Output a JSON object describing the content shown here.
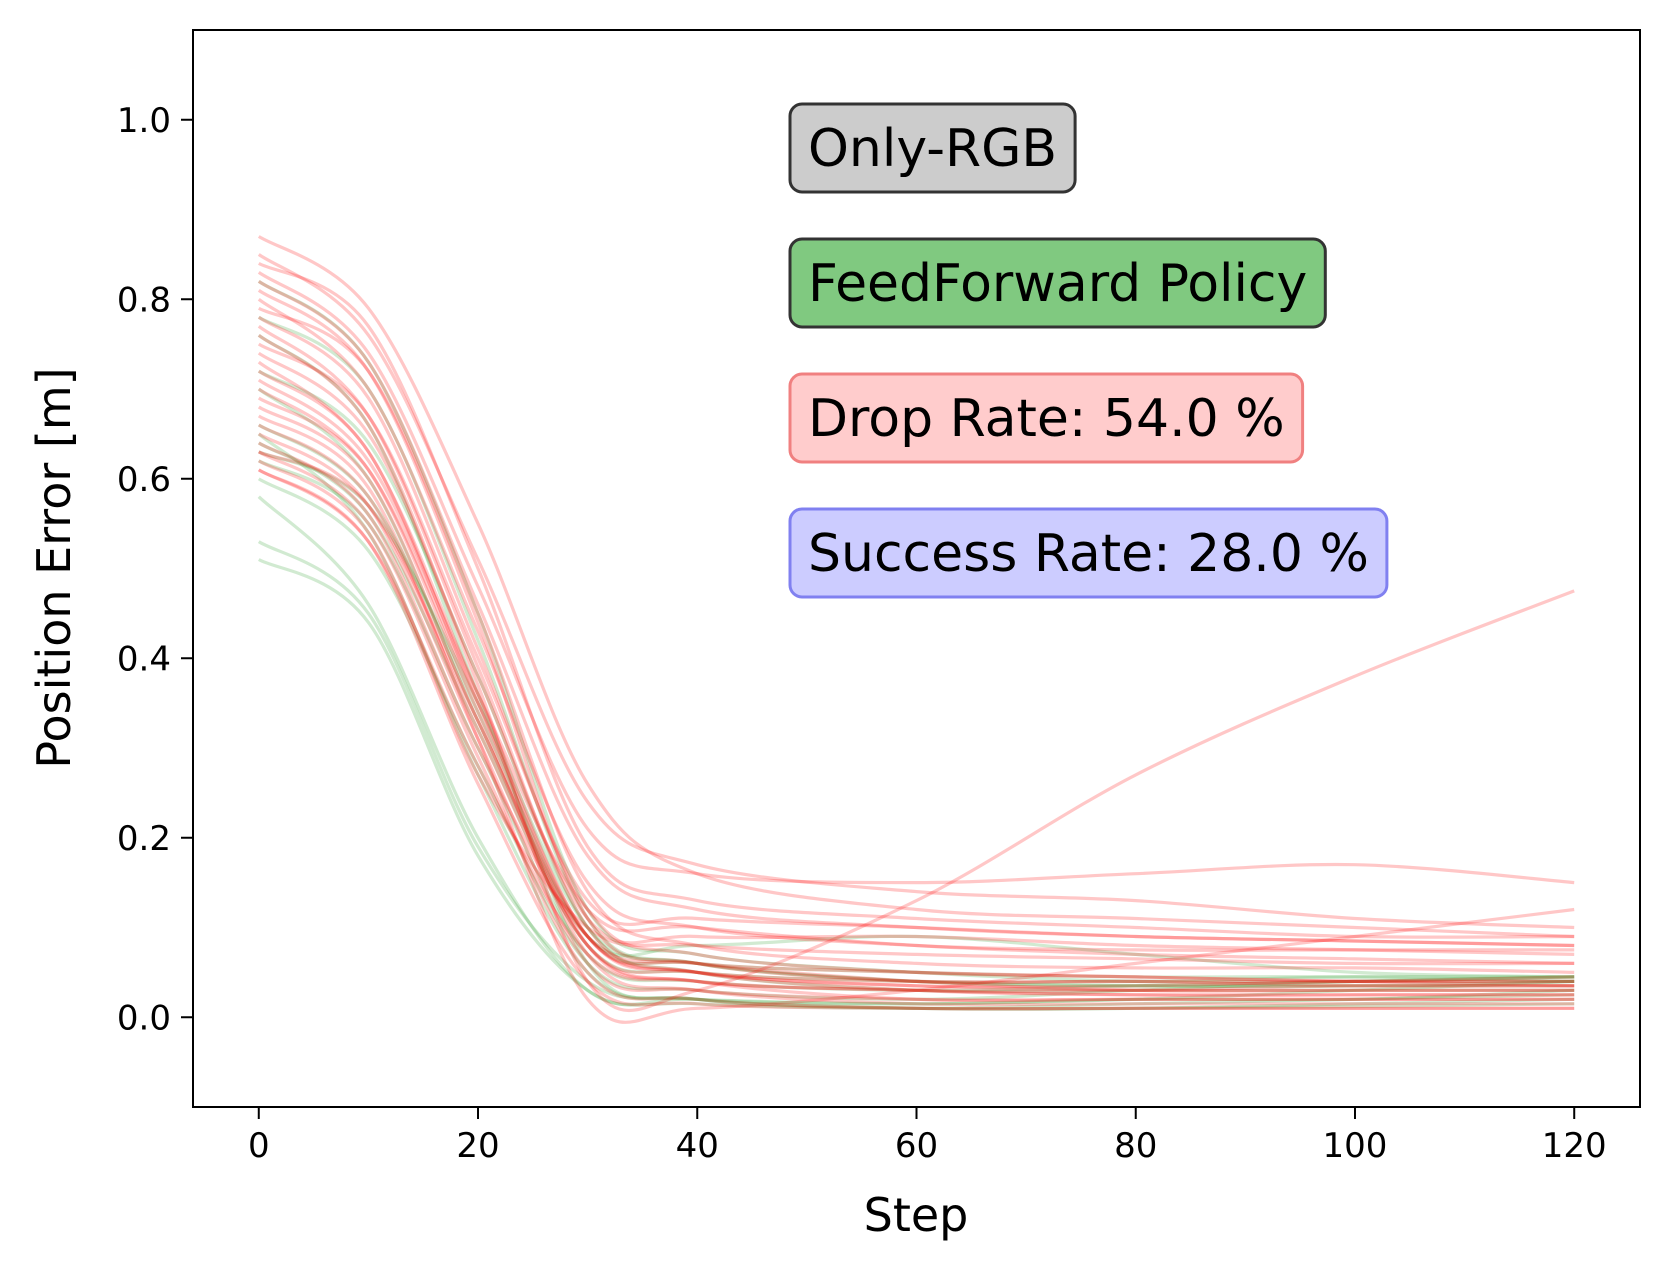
{
  "chart_data": {
    "type": "line",
    "xlabel": "Step",
    "ylabel": "Position Error [m]",
    "xlim": [
      -6,
      126
    ],
    "ylim": [
      -0.1,
      1.1
    ],
    "xticks": [
      0,
      20,
      40,
      60,
      80,
      100,
      120
    ],
    "yticks": [
      0.0,
      0.2,
      0.4,
      0.6,
      0.8,
      1.0
    ],
    "xtick_labels": [
      "0",
      "20",
      "40",
      "60",
      "80",
      "100",
      "120"
    ],
    "ytick_labels": [
      "0.0",
      "0.2",
      "0.4",
      "0.6",
      "0.8",
      "1.0"
    ],
    "grid": false,
    "annotations": [
      {
        "text": "Only-RGB",
        "face": "#cccccc",
        "edge": "#333333"
      },
      {
        "text": "FeedForward Policy",
        "face": "#80c980",
        "edge": "#333333"
      },
      {
        "text": "Drop Rate: 54.0 %",
        "face": "#ffcccc",
        "edge": "#f08080"
      },
      {
        "text": "Success Rate: 28.0 %",
        "face": "#ccccff",
        "edge": "#8080f0"
      }
    ],
    "series_colors": {
      "success": "#2ca02c",
      "drop": "#ff0000"
    },
    "series": [
      {
        "name": "success",
        "color": "#2ca02c",
        "x": [
          0,
          10,
          20,
          30,
          40,
          60,
          80,
          100,
          120
        ],
        "y": [
          0.58,
          0.46,
          0.2,
          0.03,
          0.02,
          0.015,
          0.02,
          0.03,
          0.04
        ]
      },
      {
        "name": "success",
        "color": "#2ca02c",
        "x": [
          0,
          10,
          20,
          30,
          40,
          60,
          80,
          100,
          120
        ],
        "y": [
          0.51,
          0.44,
          0.18,
          0.03,
          0.015,
          0.01,
          0.015,
          0.02,
          0.025
        ]
      },
      {
        "name": "success",
        "color": "#2ca02c",
        "x": [
          0,
          10,
          20,
          30,
          40,
          60,
          80,
          100,
          120
        ],
        "y": [
          0.53,
          0.45,
          0.19,
          0.04,
          0.02,
          0.015,
          0.02,
          0.02,
          0.03
        ]
      },
      {
        "name": "success",
        "color": "#2ca02c",
        "x": [
          0,
          10,
          20,
          30,
          40,
          60,
          80,
          100,
          120
        ],
        "y": [
          0.6,
          0.52,
          0.28,
          0.06,
          0.03,
          0.02,
          0.03,
          0.04,
          0.045
        ]
      },
      {
        "name": "success",
        "color": "#2ca02c",
        "x": [
          0,
          10,
          20,
          30,
          40,
          60,
          80,
          100,
          120
        ],
        "y": [
          0.62,
          0.55,
          0.3,
          0.07,
          0.04,
          0.03,
          0.035,
          0.04,
          0.045
        ]
      },
      {
        "name": "success",
        "color": "#2ca02c",
        "x": [
          0,
          10,
          20,
          30,
          40,
          60,
          80,
          100,
          120
        ],
        "y": [
          0.64,
          0.56,
          0.32,
          0.08,
          0.05,
          0.04,
          0.04,
          0.045,
          0.045
        ]
      },
      {
        "name": "success",
        "color": "#2ca02c",
        "x": [
          0,
          10,
          20,
          30,
          40,
          60,
          80,
          100,
          120
        ],
        "y": [
          0.66,
          0.58,
          0.34,
          0.09,
          0.06,
          0.05,
          0.045,
          0.045,
          0.04
        ]
      },
      {
        "name": "success",
        "color": "#2ca02c",
        "x": [
          0,
          10,
          20,
          30,
          40,
          60,
          80,
          100,
          120
        ],
        "y": [
          0.72,
          0.64,
          0.38,
          0.1,
          0.05,
          0.03,
          0.03,
          0.03,
          0.03
        ]
      },
      {
        "name": "success",
        "color": "#2ca02c",
        "x": [
          0,
          10,
          20,
          30,
          40,
          60,
          80,
          100,
          120
        ],
        "y": [
          0.78,
          0.7,
          0.42,
          0.11,
          0.06,
          0.04,
          0.035,
          0.035,
          0.035
        ]
      },
      {
        "name": "success",
        "color": "#2ca02c",
        "x": [
          0,
          10,
          20,
          30,
          40,
          60,
          80,
          100,
          120
        ],
        "y": [
          0.82,
          0.73,
          0.45,
          0.12,
          0.07,
          0.05,
          0.04,
          0.04,
          0.04
        ]
      },
      {
        "name": "success",
        "color": "#2ca02c",
        "x": [
          0,
          10,
          20,
          30,
          40,
          60,
          80,
          100,
          120
        ],
        "y": [
          0.7,
          0.6,
          0.33,
          0.09,
          0.08,
          0.09,
          0.07,
          0.05,
          0.045
        ]
      },
      {
        "name": "success",
        "color": "#2ca02c",
        "x": [
          0,
          10,
          20,
          30,
          40,
          60,
          80,
          100,
          120
        ],
        "y": [
          0.65,
          0.54,
          0.27,
          0.05,
          0.02,
          0.01,
          0.01,
          0.015,
          0.02
        ]
      },
      {
        "name": "success",
        "color": "#2ca02c",
        "x": [
          0,
          10,
          20,
          30,
          40,
          60,
          80,
          100,
          120
        ],
        "y": [
          0.63,
          0.57,
          0.35,
          0.1,
          0.06,
          0.04,
          0.035,
          0.035,
          0.04
        ]
      },
      {
        "name": "success",
        "color": "#2ca02c",
        "x": [
          0,
          10,
          20,
          30,
          40,
          60,
          80,
          100,
          120
        ],
        "y": [
          0.76,
          0.66,
          0.36,
          0.06,
          0.02,
          0.01,
          0.01,
          0.012,
          0.015
        ]
      },
      {
        "name": "drop",
        "color": "#ff0000",
        "x": [
          0,
          10,
          20,
          30,
          40,
          60,
          80,
          100,
          120
        ],
        "y": [
          0.87,
          0.79,
          0.55,
          0.26,
          0.16,
          0.12,
          0.11,
          0.1,
          0.09
        ]
      },
      {
        "name": "drop",
        "color": "#ff0000",
        "x": [
          0,
          10,
          20,
          30,
          40,
          60,
          80,
          100,
          120
        ],
        "y": [
          0.85,
          0.76,
          0.51,
          0.24,
          0.17,
          0.14,
          0.13,
          0.11,
          0.1
        ]
      },
      {
        "name": "drop",
        "color": "#ff0000",
        "x": [
          0,
          10,
          20,
          30,
          40,
          60,
          80,
          100,
          120
        ],
        "y": [
          0.83,
          0.74,
          0.48,
          0.21,
          0.16,
          0.15,
          0.16,
          0.17,
          0.15
        ]
      },
      {
        "name": "drop",
        "color": "#ff0000",
        "x": [
          0,
          10,
          20,
          30,
          40,
          60,
          80,
          100,
          120
        ],
        "y": [
          0.82,
          0.73,
          0.46,
          0.18,
          0.12,
          0.1,
          0.09,
          0.085,
          0.08
        ]
      },
      {
        "name": "drop",
        "color": "#ff0000",
        "x": [
          0,
          10,
          20,
          30,
          40,
          60,
          80,
          100,
          120
        ],
        "y": [
          0.8,
          0.7,
          0.43,
          0.15,
          0.1,
          0.08,
          0.075,
          0.075,
          0.075
        ]
      },
      {
        "name": "drop",
        "color": "#ff0000",
        "x": [
          0,
          10,
          20,
          30,
          40,
          60,
          80,
          100,
          120
        ],
        "y": [
          0.79,
          0.72,
          0.45,
          0.14,
          0.08,
          0.06,
          0.055,
          0.055,
          0.05
        ]
      },
      {
        "name": "drop",
        "color": "#ff0000",
        "x": [
          0,
          10,
          20,
          30,
          40,
          60,
          80,
          100,
          120
        ],
        "y": [
          0.78,
          0.69,
          0.41,
          0.12,
          0.07,
          0.05,
          0.045,
          0.04,
          0.04
        ]
      },
      {
        "name": "drop",
        "color": "#ff0000",
        "x": [
          0,
          10,
          20,
          30,
          40,
          60,
          80,
          100,
          120
        ],
        "y": [
          0.77,
          0.67,
          0.39,
          0.1,
          0.05,
          0.03,
          0.025,
          0.025,
          0.025
        ]
      },
      {
        "name": "drop",
        "color": "#ff0000",
        "x": [
          0,
          10,
          20,
          30,
          40,
          60,
          80,
          100,
          120
        ],
        "y": [
          0.76,
          0.66,
          0.37,
          0.04,
          0.03,
          0.13,
          0.27,
          0.38,
          0.475
        ]
      },
      {
        "name": "drop",
        "color": "#ff0000",
        "x": [
          0,
          10,
          20,
          30,
          40,
          60,
          80,
          100,
          120
        ],
        "y": [
          0.74,
          0.65,
          0.38,
          0.11,
          0.09,
          0.09,
          0.08,
          0.075,
          0.07
        ]
      },
      {
        "name": "drop",
        "color": "#ff0000",
        "x": [
          0,
          10,
          20,
          30,
          40,
          60,
          80,
          100,
          120
        ],
        "y": [
          0.73,
          0.63,
          0.36,
          0.09,
          0.06,
          0.04,
          0.03,
          0.03,
          0.03
        ]
      },
      {
        "name": "drop",
        "color": "#ff0000",
        "x": [
          0,
          10,
          20,
          30,
          40,
          60,
          80,
          100,
          120
        ],
        "y": [
          0.72,
          0.63,
          0.35,
          0.08,
          0.04,
          0.02,
          0.02,
          0.02,
          0.02
        ]
      },
      {
        "name": "drop",
        "color": "#ff0000",
        "x": [
          0,
          10,
          20,
          30,
          40,
          60,
          80,
          100,
          120
        ],
        "y": [
          0.71,
          0.62,
          0.36,
          0.12,
          0.1,
          0.08,
          0.07,
          0.065,
          0.06
        ]
      },
      {
        "name": "drop",
        "color": "#ff0000",
        "x": [
          0,
          10,
          20,
          30,
          40,
          60,
          80,
          100,
          120
        ],
        "y": [
          0.7,
          0.61,
          0.34,
          0.07,
          0.03,
          0.015,
          0.015,
          0.015,
          0.015
        ]
      },
      {
        "name": "drop",
        "color": "#ff0000",
        "x": [
          0,
          10,
          20,
          30,
          40,
          60,
          80,
          100,
          120
        ],
        "y": [
          0.68,
          0.6,
          0.33,
          0.09,
          0.05,
          0.035,
          0.03,
          0.03,
          0.03
        ]
      },
      {
        "name": "drop",
        "color": "#ff0000",
        "x": [
          0,
          10,
          20,
          30,
          40,
          60,
          80,
          100,
          120
        ],
        "y": [
          0.67,
          0.59,
          0.31,
          0.02,
          0.01,
          0.03,
          0.06,
          0.09,
          0.12
        ]
      },
      {
        "name": "drop",
        "color": "#ff0000",
        "x": [
          0,
          10,
          20,
          30,
          40,
          60,
          80,
          100,
          120
        ],
        "y": [
          0.66,
          0.58,
          0.32,
          0.08,
          0.04,
          0.03,
          0.025,
          0.025,
          0.025
        ]
      },
      {
        "name": "drop",
        "color": "#ff0000",
        "x": [
          0,
          10,
          20,
          30,
          40,
          60,
          80,
          100,
          120
        ],
        "y": [
          0.65,
          0.57,
          0.31,
          0.06,
          0.03,
          0.02,
          0.02,
          0.02,
          0.02
        ]
      },
      {
        "name": "drop",
        "color": "#ff0000",
        "x": [
          0,
          10,
          20,
          30,
          40,
          60,
          80,
          100,
          120
        ],
        "y": [
          0.64,
          0.56,
          0.3,
          0.09,
          0.06,
          0.05,
          0.045,
          0.04,
          0.035
        ]
      },
      {
        "name": "drop",
        "color": "#ff0000",
        "x": [
          0,
          10,
          20,
          30,
          40,
          60,
          80,
          100,
          120
        ],
        "y": [
          0.63,
          0.55,
          0.29,
          0.05,
          0.02,
          0.01,
          0.01,
          0.01,
          0.01
        ]
      },
      {
        "name": "drop",
        "color": "#ff0000",
        "x": [
          0,
          10,
          20,
          30,
          40,
          60,
          80,
          100,
          120
        ],
        "y": [
          0.62,
          0.54,
          0.27,
          0.1,
          0.08,
          0.07,
          0.065,
          0.06,
          0.06
        ]
      },
      {
        "name": "drop",
        "color": "#ff0000",
        "x": [
          0,
          10,
          20,
          30,
          40,
          60,
          80,
          100,
          120
        ],
        "y": [
          0.61,
          0.53,
          0.26,
          0.04,
          0.015,
          0.01,
          0.01,
          0.01,
          0.01
        ]
      },
      {
        "name": "drop",
        "color": "#ff0000",
        "x": [
          0,
          10,
          20,
          30,
          40,
          60,
          80,
          100,
          120
        ],
        "y": [
          0.61,
          0.53,
          0.28,
          0.07,
          0.04,
          0.03,
          0.03,
          0.035,
          0.035
        ]
      },
      {
        "name": "drop",
        "color": "#ff0000",
        "x": [
          0,
          10,
          20,
          30,
          40,
          60,
          80,
          100,
          120
        ],
        "y": [
          0.63,
          0.57,
          0.33,
          0.08,
          0.05,
          0.04,
          0.04,
          0.04,
          0.045
        ]
      },
      {
        "name": "drop",
        "color": "#ff0000",
        "x": [
          0,
          10,
          20,
          30,
          40,
          60,
          80,
          100,
          120
        ],
        "y": [
          0.69,
          0.61,
          0.35,
          0.09,
          0.05,
          0.035,
          0.035,
          0.04,
          0.04
        ]
      },
      {
        "name": "drop",
        "color": "#ff0000",
        "x": [
          0,
          10,
          20,
          30,
          40,
          60,
          80,
          100,
          120
        ],
        "y": [
          0.75,
          0.67,
          0.4,
          0.13,
          0.11,
          0.1,
          0.09,
          0.085,
          0.08
        ]
      },
      {
        "name": "drop",
        "color": "#ff0000",
        "x": [
          0,
          10,
          20,
          30,
          40,
          60,
          80,
          100,
          120
        ],
        "y": [
          0.81,
          0.72,
          0.44,
          0.11,
          0.06,
          0.04,
          0.04,
          0.035,
          0.035
        ]
      },
      {
        "name": "drop",
        "color": "#ff0000",
        "x": [
          0,
          10,
          20,
          30,
          40,
          60,
          80,
          100,
          120
        ],
        "y": [
          0.84,
          0.77,
          0.5,
          0.19,
          0.13,
          0.11,
          0.1,
          0.09,
          0.09
        ]
      }
    ]
  }
}
